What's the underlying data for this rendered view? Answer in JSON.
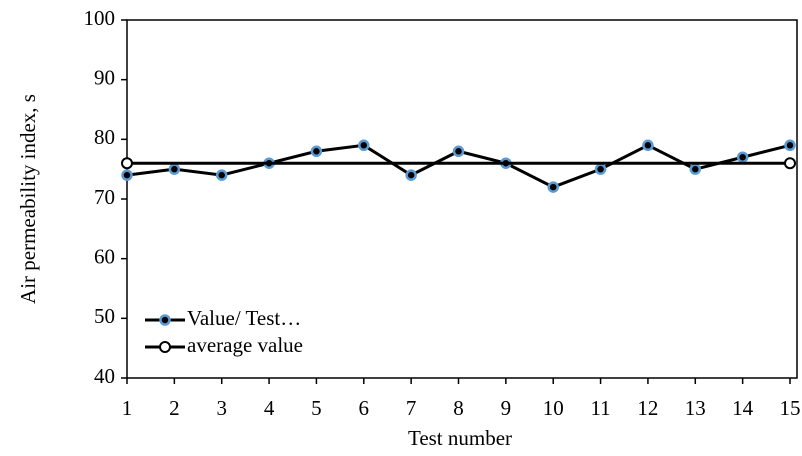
{
  "chart_data": {
    "type": "line",
    "x_label": "Test number",
    "y_label": "Air permeability index, s",
    "x": [
      1,
      2,
      3,
      4,
      5,
      6,
      7,
      8,
      9,
      10,
      11,
      12,
      13,
      14,
      15
    ],
    "series": [
      {
        "name": "Value/ Test…",
        "color": "#000000",
        "marker_color": "#5b9bd5",
        "marker": "filled",
        "values": [
          74,
          75,
          74,
          76,
          78,
          79,
          74,
          78,
          76,
          72,
          75,
          79,
          75,
          77,
          79
        ]
      },
      {
        "name": "average value",
        "color": "#000000",
        "marker": "open",
        "x": [
          1,
          15
        ],
        "values": [
          76,
          76
        ]
      }
    ],
    "xlim": [
      1,
      15
    ],
    "xticks": [
      1,
      2,
      3,
      4,
      5,
      6,
      7,
      8,
      9,
      10,
      11,
      12,
      13,
      14,
      15
    ],
    "ylim": [
      40,
      100
    ],
    "yticks": [
      40,
      50,
      60,
      70,
      80,
      90,
      100
    ],
    "grid": false,
    "legend": "lower left"
  }
}
